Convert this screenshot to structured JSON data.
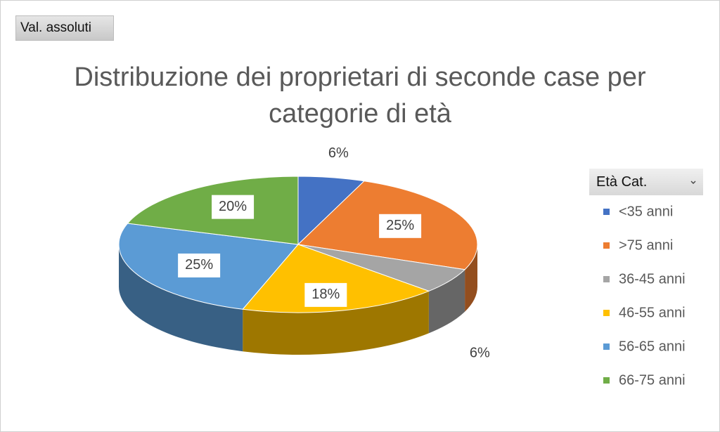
{
  "chart_data": {
    "type": "pie",
    "field_button": "Val. assoluti",
    "title": "Distribuzione dei proprietari di seconde case per categorie di età",
    "legend_title": "Età Cat.",
    "categories": [
      "<35 anni",
      ">75 anni",
      "36-45 anni",
      "46-55 anni",
      "56-65 anni",
      "66-75 anni"
    ],
    "values": [
      6,
      25,
      6,
      18,
      25,
      20
    ],
    "value_labels": [
      "6%",
      "25%",
      "6%",
      "18%",
      "25%",
      "20%"
    ],
    "colors": [
      "#4472c4",
      "#ed7d31",
      "#a5a5a5",
      "#ffc000",
      "#5b9bd5",
      "#70ad47"
    ],
    "legend": "right"
  }
}
